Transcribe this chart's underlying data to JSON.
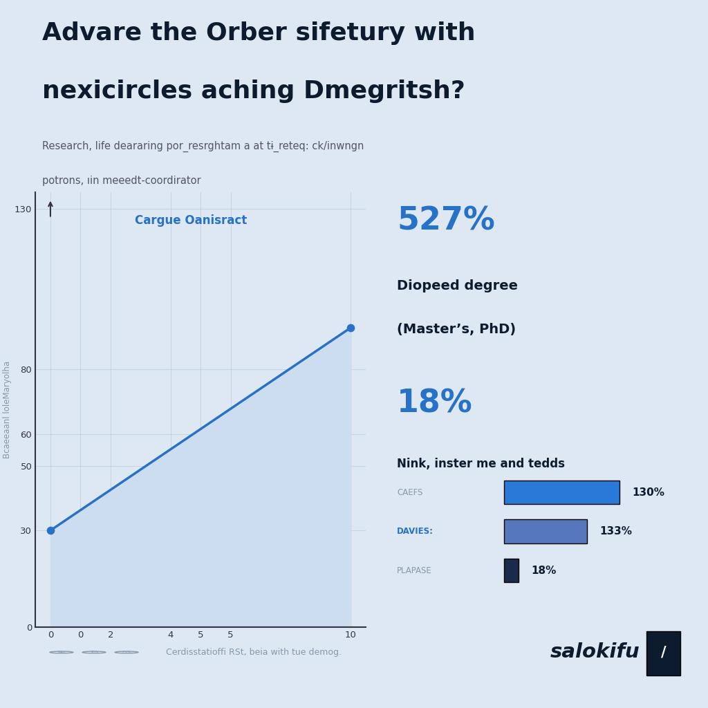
{
  "title_line1": "Advare the Orber sifetury with",
  "title_line2": "nexicircles aching Dmegritsh?",
  "subtitle_line1": "Research, life deararing por_resrghtam a at tɨ_reteq: ck/inwngn",
  "subtitle_line2": "potrons, ıin meeedt-coordirator",
  "bg_color": "#dde8f2",
  "chart_title": "Cargue Oanisract",
  "chart_title_color": "#2672c8",
  "line_color": "#2672c8",
  "fill_color": "#ccddf0",
  "x_data": [
    0,
    10
  ],
  "y_data": [
    30,
    93
  ],
  "ytick_positions": [
    0,
    30,
    50,
    60,
    80,
    130
  ],
  "ytick_labels": [
    "0",
    "30",
    "50",
    "60",
    "80",
    "130"
  ],
  "xtick_positions": [
    0,
    1,
    2,
    4,
    5,
    6,
    10
  ],
  "xtick_labels": [
    "0",
    "0",
    "2",
    "4",
    "5",
    "5",
    "10"
  ],
  "ylabel": "Bcaeeaanl loleMaryolha",
  "ylabel_color": "#8899aa",
  "stat1_pct": "527%",
  "stat1_label1": "Diopeed degree",
  "stat1_label2": "(Master’s, PhD)",
  "stat2_pct": "18%",
  "stat2_label": "Nink, inster me and tedds",
  "stat_color": "#2672c8",
  "bars": [
    {
      "label": "CAEFS",
      "value": 1.0,
      "color": "#2979d8",
      "pct": "130%",
      "label_bold": false
    },
    {
      "label": "DAVIES:",
      "value": 0.72,
      "color": "#5577bb",
      "pct": "133%",
      "label_bold": true
    },
    {
      "label": "PLAPASE",
      "value": 0.13,
      "color": "#1a2a4a",
      "pct": "18%",
      "label_bold": false
    }
  ],
  "footer_circles": [
    "Mer",
    "20S",
    "ES%"
  ],
  "footer_left": "Cerdisstatioffi RSt, beia with tue demog.",
  "footer_brand": "salokifu",
  "ylim": [
    0,
    135
  ],
  "xlim": [
    -0.5,
    10.5
  ],
  "title_color": "#0d1b2e",
  "subtitle_color": "#555566"
}
